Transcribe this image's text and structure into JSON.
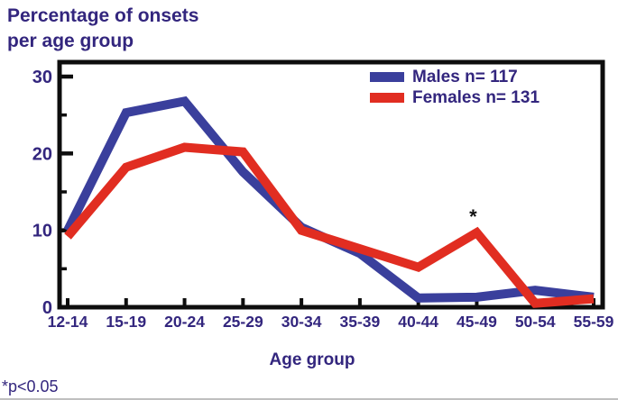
{
  "figure": {
    "title_line1": "Percentage of onsets",
    "title_line2": "per age group",
    "footnote": "*p<0.05"
  },
  "colors": {
    "text": "#33267e",
    "axis": "#0d0d0d",
    "males_line": "#3a3f9c",
    "females_line": "#e12d21",
    "annotation": "#111111"
  },
  "chart_data": {
    "type": "line",
    "title": "Percentage of onsets per age group",
    "xlabel": "Age group",
    "ylabel": "Percentage of onsets per age group",
    "categories": [
      "12-14",
      "15-19",
      "20-24",
      "25-29",
      "30-34",
      "35-39",
      "40-44",
      "45-49",
      "50-54",
      "55-59"
    ],
    "series": [
      {
        "name": "Males n= 117",
        "color": "#3a3f9c",
        "values": [
          10,
          25.3,
          26.8,
          17.6,
          10.4,
          7.0,
          1.2,
          1.3,
          2.2,
          1.3
        ]
      },
      {
        "name": "Females n= 131",
        "color": "#e12d21",
        "values": [
          9.2,
          18.2,
          20.8,
          20.2,
          10.0,
          7.6,
          5.2,
          9.7,
          0.5,
          1.1
        ]
      }
    ],
    "ylim": [
      0,
      32
    ],
    "yticks_major": [
      0,
      10,
      20,
      30
    ],
    "yticks_minor": [
      5,
      15,
      25
    ],
    "grid": false,
    "legend_position": "top-right",
    "annotations": [
      {
        "text": "*",
        "series": "Females n= 131",
        "category": "45-49"
      }
    ]
  }
}
